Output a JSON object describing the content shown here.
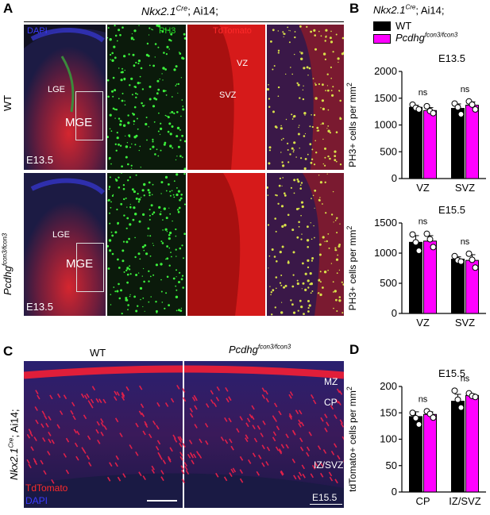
{
  "panel_a": {
    "letter": "A",
    "title_gene": "Nkx2.1",
    "title_sup": "Cre",
    "title_rest": "; Ai14;",
    "channels": [
      "DAPI",
      "PH3",
      "TdTomato"
    ],
    "row1_label": "WT",
    "row2_label_base": "Pcdhg",
    "row2_label_sup": "fcon3/fcon3",
    "regions": {
      "lge": "LGE",
      "mge": "MGE",
      "vz": "VZ",
      "svz": "SVZ"
    },
    "stage": "E13.5"
  },
  "panel_b": {
    "letter": "B",
    "title_gene": "Nkx2.1",
    "title_sup": "Cre",
    "title_rest": "; Ai14;",
    "legend_wt": "WT",
    "legend_mut_base": "Pcdhg",
    "legend_mut_sup": "fcon3/fcon3",
    "ylabel": "PH3+ cells per mm",
    "ylabel_sup": "2"
  },
  "panel_c": {
    "letter": "C",
    "wt_label": "WT",
    "mut_base": "Pcdhg",
    "mut_sup": "fcon3/fcon3",
    "side_gene": "Nkx2.1",
    "side_sup": "Cre",
    "side_rest": "; Ai14;",
    "layers": {
      "mz": "MZ",
      "cp": "CP",
      "iz": "IZ/SVZ"
    },
    "legend_red": "TdTomato",
    "legend_blue": "DAPI",
    "stage": "E15.5"
  },
  "panel_d": {
    "letter": "D",
    "ylabel": "tdTomato+ cells per mm",
    "ylabel_sup": "2"
  },
  "colors": {
    "wt": "#000000",
    "mutant": "#ff00ff",
    "dapi": "#3a3aff",
    "ph3": "#22dd22",
    "tdtomato": "#ff2a2a"
  },
  "chart_data": [
    {
      "type": "bar",
      "title": "E13.5",
      "categories": [
        "VZ",
        "SVZ"
      ],
      "series": [
        {
          "name": "WT",
          "values": [
            1330,
            1310
          ],
          "points": [
            [
              1380,
              1320,
              1290
            ],
            [
              1400,
              1330,
              1200
            ]
          ]
        },
        {
          "name": "Pcdhg fcon3/fcon3",
          "values": [
            1270,
            1370
          ],
          "points": [
            [
              1350,
              1260,
              1220
            ],
            [
              1440,
              1380,
              1290
            ]
          ]
        }
      ],
      "annotations": [
        "ns",
        "ns"
      ],
      "ylabel": "PH3+ cells per mm2",
      "ylim": [
        0,
        2000
      ],
      "yticks": [
        0,
        500,
        1000,
        1500,
        2000
      ]
    },
    {
      "type": "bar",
      "title": "E15.5",
      "categories": [
        "VZ",
        "SVZ"
      ],
      "series": [
        {
          "name": "WT",
          "values": [
            1180,
            900
          ],
          "points": [
            [
              1310,
              1180,
              1040
            ],
            [
              950,
              880,
              860
            ]
          ]
        },
        {
          "name": "Pcdhg fcon3/fcon3",
          "values": [
            1200,
            880
          ],
          "points": [
            [
              1320,
              1230,
              1100
            ],
            [
              990,
              890,
              760
            ]
          ]
        }
      ],
      "annotations": [
        "ns",
        "ns"
      ],
      "ylabel": "PH3+ cells per mm2",
      "ylim": [
        0,
        1500
      ],
      "yticks": [
        0,
        500,
        1000,
        1500
      ]
    },
    {
      "type": "bar",
      "title": "E15.5",
      "categories": [
        "CP",
        "IZ/SVZ"
      ],
      "series": [
        {
          "name": "WT",
          "values": [
            143,
            172
          ],
          "points": [
            [
              150,
              140,
              128
            ],
            [
              192,
              175,
              160
            ]
          ]
        },
        {
          "name": "Pcdhg fcon3/fcon3",
          "values": [
            147,
            183
          ],
          "points": [
            [
              153,
              148,
              141
            ],
            [
              187,
              182,
              180
            ]
          ]
        }
      ],
      "annotations": [
        "ns",
        "ns"
      ],
      "ylabel": "tdTomato+ cells per mm2",
      "ylim": [
        0,
        200
      ],
      "yticks": [
        0,
        50,
        100,
        150,
        200
      ]
    }
  ]
}
